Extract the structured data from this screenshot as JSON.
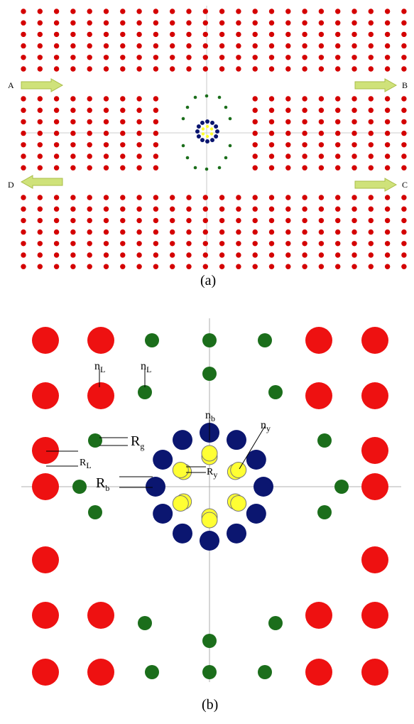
{
  "panel_a": {
    "caption": "(a)",
    "port_labels": {
      "A": "A",
      "B": "B",
      "C": "C",
      "D": "D"
    },
    "colors": {
      "rod": "#d40000",
      "ring_blue": "#0b1670",
      "ring_yellow": "#ffff2a",
      "green": "#1b6e1b",
      "arrow": "#cfe27a"
    }
  },
  "panel_b": {
    "caption": "(b)",
    "labels": {
      "n_main": "n",
      "L_sub": "L",
      "b_sub": "b",
      "y_sub": "y",
      "R_main": "R",
      "g_sub": "g"
    },
    "colors": {
      "rod": "#ee1111",
      "ring_blue": "#0b1670",
      "ring_yellow": "#ffff33",
      "green": "#1b6e1b",
      "axis": "#999999"
    }
  }
}
